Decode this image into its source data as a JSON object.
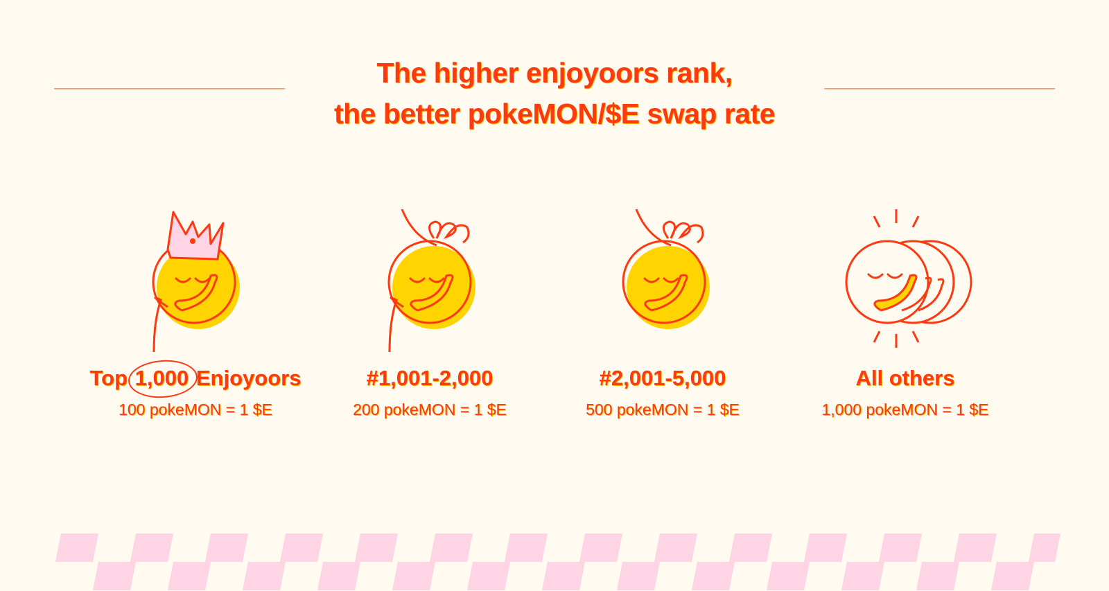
{
  "headline": {
    "line1": "The higher enjoyoors rank,",
    "line2": "the better pokeMON/$E swap rate"
  },
  "tiers": [
    {
      "title_prefix": "Top",
      "title_highlight": "1,000",
      "title_suffix": "Enjoyoors",
      "rate": "100 pokeMON = 1 $E",
      "icon": "crowned-face-icon"
    },
    {
      "title": "#1,001-2,000",
      "rate": "200 pokeMON = 1 $E",
      "icon": "curly-hair-face-icon"
    },
    {
      "title": "#2,001-5,000",
      "rate": "500 pokeMON = 1 $E",
      "icon": "curly-hair-face-icon"
    },
    {
      "title": "All others",
      "rate": "1,000 pokeMON = 1 $E",
      "icon": "multiple-faces-icon"
    }
  ],
  "colors": {
    "background": "#fffbf0",
    "accent": "#ff3a10",
    "yellow": "#ffd400",
    "pink": "#ffd4e4",
    "rule": "#f7a07a"
  }
}
